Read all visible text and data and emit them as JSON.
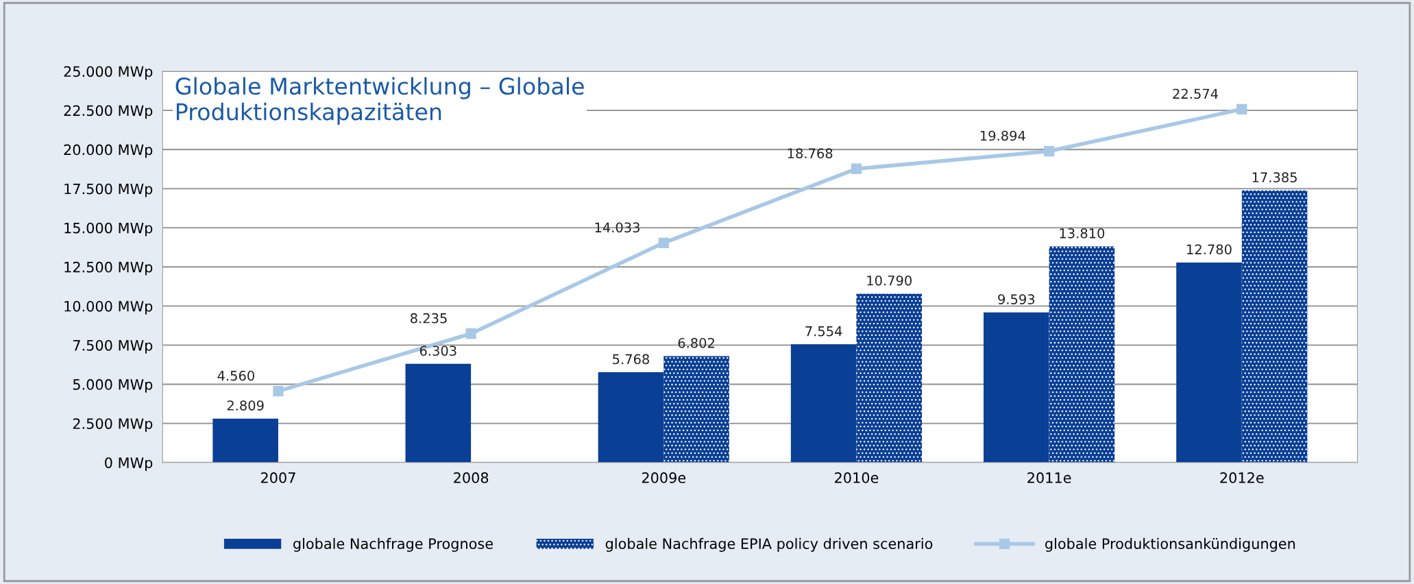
{
  "chart_data": {
    "type": "bar",
    "title": "Globale Marktentwicklung – Globale\nProduktionskapazitäten",
    "categories": [
      "2007",
      "2008",
      "2009e",
      "2010e",
      "2011e",
      "2012e"
    ],
    "series": [
      {
        "name": "globale Nachfrage Prognose",
        "color": "#0a3f96",
        "values": [
          2809,
          6303,
          5768,
          7554,
          9593,
          12780
        ],
        "value_labels": [
          "2.809",
          "6.303",
          "5.768",
          "7.554",
          "9.593",
          "12.780"
        ]
      },
      {
        "name": "globale Nachfrage EPIA policy driven scenario",
        "color": "#0a3f96",
        "values": [
          null,
          null,
          6802,
          10790,
          13810,
          17385
        ],
        "value_labels": [
          null,
          null,
          "6.802",
          "10.790",
          "13.810",
          "17.385"
        ]
      },
      {
        "name": "globale Produktionsankündigungen",
        "type": "line",
        "color": "#a8c8e6",
        "marker": "square",
        "values": [
          4560,
          8235,
          14033,
          18768,
          19894,
          22574
        ],
        "value_labels": [
          "4.560",
          "8.235",
          "14.033",
          "18.768",
          "19.894",
          "22.574"
        ]
      }
    ],
    "ylim": [
      0,
      25000
    ],
    "yticks": [
      {
        "value": 0,
        "label": "0 MWp"
      },
      {
        "value": 2500,
        "label": "2.500 MWp"
      },
      {
        "value": 5000,
        "label": "5.000 MWp"
      },
      {
        "value": 7500,
        "label": "7.500 MWp"
      },
      {
        "value": 10000,
        "label": "10.000 MWp"
      },
      {
        "value": 12500,
        "label": "12.500 MWp"
      },
      {
        "value": 15000,
        "label": "15.000 MWp"
      },
      {
        "value": 17500,
        "label": "17.500 MWp"
      },
      {
        "value": 20000,
        "label": "20.000 MWp"
      },
      {
        "value": 22500,
        "label": "22.500 MWp"
      },
      {
        "value": 25000,
        "label": "25.000 MWp"
      }
    ],
    "grid": "y",
    "legend": "bottom"
  }
}
